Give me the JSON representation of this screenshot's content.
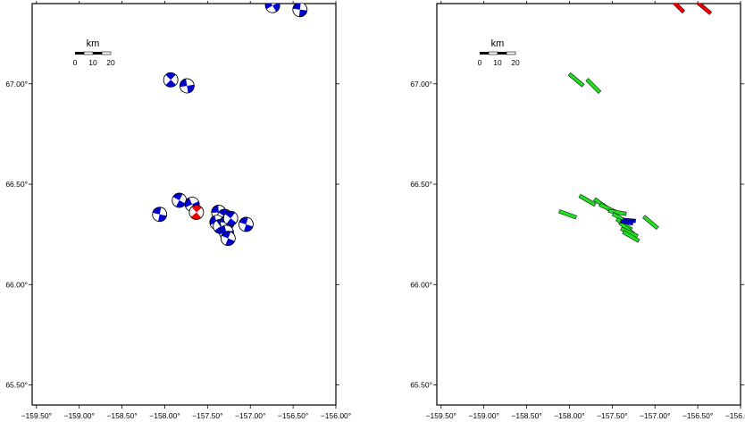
{
  "colors": {
    "compression": "#0000cc",
    "normal": "#ee0000",
    "strike_slip_bar": "#22dd22",
    "frame": "#000000"
  },
  "scale_bar": {
    "unit": "km",
    "ticks": [
      "0",
      "10",
      "20"
    ]
  },
  "axes": {
    "lon_labels": [
      "−159.50°",
      "−159.00°",
      "−158.50°",
      "−158.00°",
      "−157.50°",
      "−157.00°",
      "−156.50°",
      "−156.00°"
    ],
    "lat_labels": [
      "67.00°",
      "66.50°",
      "66.00°",
      "65.50°"
    ],
    "lon_range": [
      -159.55,
      -156.0
    ],
    "lat_range": [
      65.4,
      67.4
    ]
  },
  "left_panel": {
    "mechanisms": [
      {
        "lon": -156.74,
        "lat": 67.39,
        "type": "compression"
      },
      {
        "lon": -156.42,
        "lat": 67.37,
        "type": "compression"
      },
      {
        "lon": -157.93,
        "lat": 67.02,
        "type": "compression"
      },
      {
        "lon": -157.74,
        "lat": 66.99,
        "type": "compression"
      },
      {
        "lon": -157.83,
        "lat": 66.42,
        "type": "compression"
      },
      {
        "lon": -157.68,
        "lat": 66.4,
        "type": "compression"
      },
      {
        "lon": -158.06,
        "lat": 66.35,
        "type": "compression"
      },
      {
        "lon": -157.63,
        "lat": 66.36,
        "type": "normal"
      },
      {
        "lon": -157.37,
        "lat": 66.36,
        "type": "compression"
      },
      {
        "lon": -157.3,
        "lat": 66.34,
        "type": "compression"
      },
      {
        "lon": -157.39,
        "lat": 66.31,
        "type": "compression"
      },
      {
        "lon": -157.05,
        "lat": 66.3,
        "type": "compression"
      },
      {
        "lon": -157.35,
        "lat": 66.29,
        "type": "compression"
      },
      {
        "lon": -157.27,
        "lat": 66.31,
        "type": "compression"
      },
      {
        "lon": -157.23,
        "lat": 66.33,
        "type": "compression"
      },
      {
        "lon": -157.28,
        "lat": 66.26,
        "type": "compression"
      },
      {
        "lon": -157.26,
        "lat": 66.23,
        "type": "compression"
      }
    ]
  },
  "right_panel": {
    "bars": [
      {
        "lon": -156.74,
        "lat": 67.39,
        "azimuth": 135,
        "type": "normal"
      },
      {
        "lon": -156.43,
        "lat": 67.38,
        "azimuth": 130,
        "type": "normal"
      },
      {
        "lon": -157.92,
        "lat": 67.02,
        "azimuth": 130,
        "type": "strike_slip"
      },
      {
        "lon": -157.72,
        "lat": 66.99,
        "azimuth": 135,
        "type": "strike_slip"
      },
      {
        "lon": -157.79,
        "lat": 66.42,
        "azimuth": 120,
        "type": "strike_slip"
      },
      {
        "lon": -157.62,
        "lat": 66.4,
        "azimuth": 125,
        "type": "strike_slip"
      },
      {
        "lon": -158.02,
        "lat": 66.35,
        "azimuth": 110,
        "type": "strike_slip"
      },
      {
        "lon": -157.55,
        "lat": 66.38,
        "azimuth": 115,
        "type": "strike_slip"
      },
      {
        "lon": -157.44,
        "lat": 66.36,
        "azimuth": 100,
        "type": "strike_slip"
      },
      {
        "lon": -157.4,
        "lat": 66.33,
        "azimuth": 120,
        "type": "strike_slip"
      },
      {
        "lon": -157.36,
        "lat": 66.3,
        "azimuth": 125,
        "type": "strike_slip"
      },
      {
        "lon": -157.33,
        "lat": 66.28,
        "azimuth": 130,
        "type": "strike_slip"
      },
      {
        "lon": -157.3,
        "lat": 66.26,
        "azimuth": 115,
        "type": "strike_slip"
      },
      {
        "lon": -157.28,
        "lat": 66.24,
        "azimuth": 120,
        "type": "strike_slip"
      },
      {
        "lon": -157.05,
        "lat": 66.31,
        "azimuth": 130,
        "type": "strike_slip"
      },
      {
        "lon": -157.3,
        "lat": 66.32,
        "azimuth": 95,
        "type": "compression"
      },
      {
        "lon": -157.33,
        "lat": 66.31,
        "azimuth": 100,
        "type": "compression"
      }
    ]
  }
}
